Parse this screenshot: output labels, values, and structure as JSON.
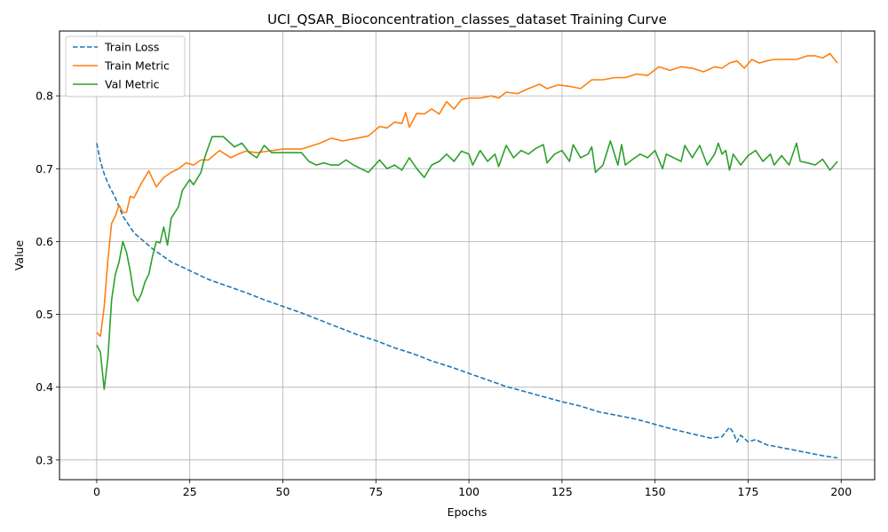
{
  "chart_data": {
    "type": "line",
    "title": "UCI_QSAR_Bioconcentration_classes_dataset Training Curve",
    "xlabel": "Epochs",
    "ylabel": "Value",
    "xlim": [
      -10,
      209
    ],
    "ylim": [
      0.273,
      0.889
    ],
    "xticks": [
      0,
      25,
      50,
      75,
      100,
      125,
      150,
      175,
      200
    ],
    "yticks": [
      0.3,
      0.4,
      0.5,
      0.6,
      0.7,
      0.8
    ],
    "grid": true,
    "legend_position": "upper-left",
    "series": [
      {
        "name": "Train Loss",
        "color": "#1f77b4",
        "style": "dashed",
        "points": [
          [
            0,
            0.735
          ],
          [
            1,
            0.71
          ],
          [
            2,
            0.693
          ],
          [
            3,
            0.68
          ],
          [
            5,
            0.66
          ],
          [
            7,
            0.635
          ],
          [
            10,
            0.612
          ],
          [
            15,
            0.59
          ],
          [
            20,
            0.572
          ],
          [
            25,
            0.56
          ],
          [
            30,
            0.548
          ],
          [
            35,
            0.539
          ],
          [
            40,
            0.53
          ],
          [
            45,
            0.52
          ],
          [
            50,
            0.511
          ],
          [
            55,
            0.502
          ],
          [
            60,
            0.492
          ],
          [
            65,
            0.482
          ],
          [
            70,
            0.472
          ],
          [
            75,
            0.464
          ],
          [
            80,
            0.454
          ],
          [
            85,
            0.446
          ],
          [
            90,
            0.436
          ],
          [
            95,
            0.428
          ],
          [
            100,
            0.419
          ],
          [
            105,
            0.41
          ],
          [
            110,
            0.401
          ],
          [
            115,
            0.394
          ],
          [
            120,
            0.387
          ],
          [
            125,
            0.38
          ],
          [
            130,
            0.374
          ],
          [
            135,
            0.366
          ],
          [
            140,
            0.361
          ],
          [
            145,
            0.356
          ],
          [
            150,
            0.349
          ],
          [
            155,
            0.342
          ],
          [
            160,
            0.336
          ],
          [
            165,
            0.33
          ],
          [
            168,
            0.332
          ],
          [
            170,
            0.345
          ],
          [
            171,
            0.338
          ],
          [
            172,
            0.325
          ],
          [
            173,
            0.334
          ],
          [
            175,
            0.325
          ],
          [
            177,
            0.328
          ],
          [
            180,
            0.321
          ],
          [
            185,
            0.316
          ],
          [
            190,
            0.311
          ],
          [
            195,
            0.306
          ],
          [
            199,
            0.303
          ]
        ]
      },
      {
        "name": "Train Metric",
        "color": "#ff7f0e",
        "style": "solid",
        "points": [
          [
            0,
            0.475
          ],
          [
            1,
            0.47
          ],
          [
            2,
            0.51
          ],
          [
            3,
            0.575
          ],
          [
            4,
            0.625
          ],
          [
            5,
            0.635
          ],
          [
            6,
            0.65
          ],
          [
            7,
            0.64
          ],
          [
            8,
            0.64
          ],
          [
            9,
            0.662
          ],
          [
            10,
            0.66
          ],
          [
            12,
            0.68
          ],
          [
            14,
            0.697
          ],
          [
            16,
            0.675
          ],
          [
            18,
            0.688
          ],
          [
            20,
            0.695
          ],
          [
            22,
            0.7
          ],
          [
            24,
            0.708
          ],
          [
            26,
            0.705
          ],
          [
            28,
            0.712
          ],
          [
            30,
            0.712
          ],
          [
            33,
            0.725
          ],
          [
            36,
            0.715
          ],
          [
            38,
            0.72
          ],
          [
            40,
            0.724
          ],
          [
            43,
            0.722
          ],
          [
            46,
            0.724
          ],
          [
            50,
            0.727
          ],
          [
            55,
            0.727
          ],
          [
            60,
            0.735
          ],
          [
            63,
            0.742
          ],
          [
            66,
            0.738
          ],
          [
            70,
            0.742
          ],
          [
            73,
            0.745
          ],
          [
            76,
            0.758
          ],
          [
            78,
            0.756
          ],
          [
            80,
            0.764
          ],
          [
            82,
            0.762
          ],
          [
            83,
            0.777
          ],
          [
            84,
            0.757
          ],
          [
            86,
            0.776
          ],
          [
            88,
            0.775
          ],
          [
            90,
            0.782
          ],
          [
            92,
            0.775
          ],
          [
            94,
            0.792
          ],
          [
            96,
            0.782
          ],
          [
            98,
            0.795
          ],
          [
            100,
            0.797
          ],
          [
            103,
            0.797
          ],
          [
            106,
            0.8
          ],
          [
            108,
            0.797
          ],
          [
            110,
            0.805
          ],
          [
            113,
            0.803
          ],
          [
            116,
            0.81
          ],
          [
            119,
            0.816
          ],
          [
            121,
            0.81
          ],
          [
            124,
            0.815
          ],
          [
            127,
            0.813
          ],
          [
            130,
            0.81
          ],
          [
            133,
            0.822
          ],
          [
            136,
            0.822
          ],
          [
            139,
            0.825
          ],
          [
            142,
            0.825
          ],
          [
            145,
            0.83
          ],
          [
            148,
            0.828
          ],
          [
            151,
            0.84
          ],
          [
            154,
            0.835
          ],
          [
            157,
            0.84
          ],
          [
            160,
            0.838
          ],
          [
            163,
            0.833
          ],
          [
            166,
            0.84
          ],
          [
            168,
            0.838
          ],
          [
            170,
            0.845
          ],
          [
            172,
            0.848
          ],
          [
            174,
            0.838
          ],
          [
            176,
            0.85
          ],
          [
            178,
            0.845
          ],
          [
            180,
            0.848
          ],
          [
            182,
            0.85
          ],
          [
            185,
            0.85
          ],
          [
            188,
            0.85
          ],
          [
            191,
            0.855
          ],
          [
            193,
            0.855
          ],
          [
            195,
            0.852
          ],
          [
            197,
            0.858
          ],
          [
            199,
            0.845
          ]
        ]
      },
      {
        "name": "Val Metric",
        "color": "#2ca02c",
        "style": "solid",
        "points": [
          [
            0,
            0.458
          ],
          [
            1,
            0.448
          ],
          [
            2,
            0.397
          ],
          [
            3,
            0.44
          ],
          [
            4,
            0.52
          ],
          [
            5,
            0.555
          ],
          [
            6,
            0.572
          ],
          [
            7,
            0.6
          ],
          [
            8,
            0.585
          ],
          [
            9,
            0.56
          ],
          [
            10,
            0.527
          ],
          [
            11,
            0.518
          ],
          [
            12,
            0.528
          ],
          [
            13,
            0.545
          ],
          [
            14,
            0.555
          ],
          [
            15,
            0.58
          ],
          [
            16,
            0.6
          ],
          [
            17,
            0.598
          ],
          [
            18,
            0.62
          ],
          [
            19,
            0.595
          ],
          [
            20,
            0.632
          ],
          [
            22,
            0.648
          ],
          [
            23,
            0.67
          ],
          [
            25,
            0.685
          ],
          [
            26,
            0.678
          ],
          [
            28,
            0.695
          ],
          [
            29,
            0.715
          ],
          [
            30,
            0.73
          ],
          [
            31,
            0.744
          ],
          [
            34,
            0.744
          ],
          [
            37,
            0.73
          ],
          [
            39,
            0.735
          ],
          [
            41,
            0.722
          ],
          [
            43,
            0.715
          ],
          [
            45,
            0.732
          ],
          [
            47,
            0.722
          ],
          [
            50,
            0.722
          ],
          [
            55,
            0.722
          ],
          [
            57,
            0.71
          ],
          [
            59,
            0.705
          ],
          [
            61,
            0.708
          ],
          [
            63,
            0.705
          ],
          [
            65,
            0.705
          ],
          [
            67,
            0.712
          ],
          [
            69,
            0.705
          ],
          [
            71,
            0.7
          ],
          [
            73,
            0.695
          ],
          [
            76,
            0.712
          ],
          [
            78,
            0.7
          ],
          [
            80,
            0.705
          ],
          [
            82,
            0.698
          ],
          [
            84,
            0.715
          ],
          [
            86,
            0.7
          ],
          [
            88,
            0.688
          ],
          [
            90,
            0.705
          ],
          [
            92,
            0.71
          ],
          [
            94,
            0.72
          ],
          [
            96,
            0.71
          ],
          [
            98,
            0.724
          ],
          [
            100,
            0.72
          ],
          [
            101,
            0.705
          ],
          [
            103,
            0.725
          ],
          [
            105,
            0.71
          ],
          [
            107,
            0.72
          ],
          [
            108,
            0.703
          ],
          [
            110,
            0.732
          ],
          [
            112,
            0.715
          ],
          [
            114,
            0.725
          ],
          [
            116,
            0.72
          ],
          [
            118,
            0.728
          ],
          [
            120,
            0.733
          ],
          [
            121,
            0.708
          ],
          [
            123,
            0.72
          ],
          [
            125,
            0.725
          ],
          [
            127,
            0.71
          ],
          [
            128,
            0.733
          ],
          [
            130,
            0.715
          ],
          [
            132,
            0.72
          ],
          [
            133,
            0.73
          ],
          [
            134,
            0.695
          ],
          [
            136,
            0.705
          ],
          [
            138,
            0.738
          ],
          [
            140,
            0.705
          ],
          [
            141,
            0.733
          ],
          [
            142,
            0.705
          ],
          [
            144,
            0.713
          ],
          [
            146,
            0.72
          ],
          [
            148,
            0.715
          ],
          [
            150,
            0.725
          ],
          [
            152,
            0.7
          ],
          [
            153,
            0.72
          ],
          [
            155,
            0.715
          ],
          [
            157,
            0.71
          ],
          [
            158,
            0.732
          ],
          [
            160,
            0.715
          ],
          [
            162,
            0.732
          ],
          [
            164,
            0.705
          ],
          [
            166,
            0.72
          ],
          [
            167,
            0.735
          ],
          [
            168,
            0.72
          ],
          [
            169,
            0.725
          ],
          [
            170,
            0.698
          ],
          [
            171,
            0.72
          ],
          [
            173,
            0.705
          ],
          [
            175,
            0.718
          ],
          [
            177,
            0.725
          ],
          [
            179,
            0.71
          ],
          [
            181,
            0.72
          ],
          [
            182,
            0.705
          ],
          [
            184,
            0.718
          ],
          [
            186,
            0.705
          ],
          [
            188,
            0.735
          ],
          [
            189,
            0.71
          ],
          [
            191,
            0.708
          ],
          [
            193,
            0.705
          ],
          [
            195,
            0.713
          ],
          [
            197,
            0.698
          ],
          [
            199,
            0.71
          ]
        ]
      }
    ]
  }
}
